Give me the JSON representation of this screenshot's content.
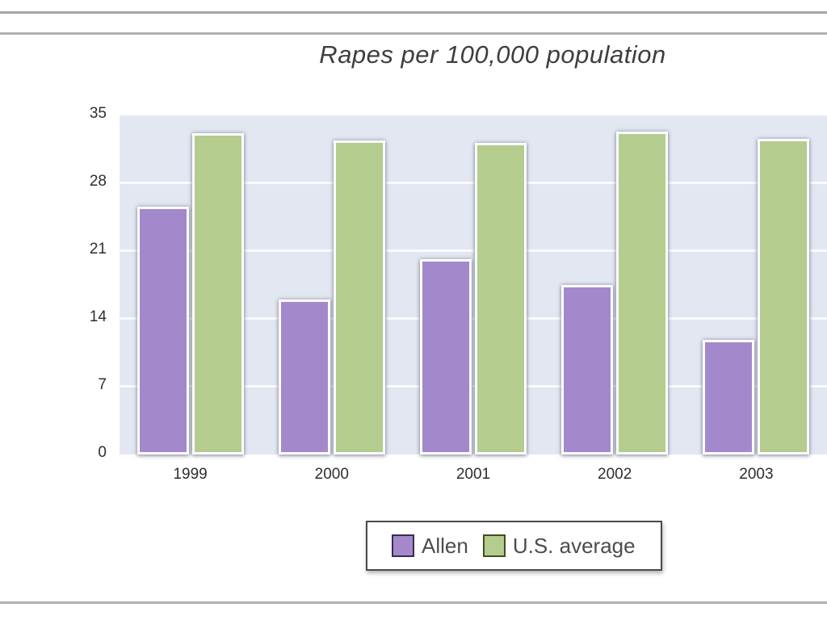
{
  "page": {
    "background": "#ffffff",
    "rule_color_top": "#a6a6a6",
    "rule_color_bottom": "#b0b0b0"
  },
  "chart_data": {
    "type": "bar",
    "title": "Rapes per 100,000 population",
    "title_color": "#3e3e3e",
    "categories": [
      "1999",
      "2000",
      "2001",
      "2002",
      "2003"
    ],
    "series": [
      {
        "name": "Allen",
        "color": "#a389cc",
        "bar_edge_color": "#fcfdfe",
        "legend_swatch_border": "#372c4f",
        "values": [
          25.6,
          16.0,
          20.2,
          17.5,
          11.8
        ]
      },
      {
        "name": "U.S. average",
        "color": "#b4cc8e",
        "bar_edge_color": "#fcfdfe",
        "legend_swatch_border": "#414d1c",
        "values": [
          33.2,
          32.4,
          32.2,
          33.3,
          32.6
        ]
      }
    ],
    "xlabel": "",
    "ylabel": "",
    "ylim": [
      0,
      35
    ],
    "yticks": [
      0,
      7,
      14,
      21,
      28,
      35
    ],
    "grid": true,
    "gridline_color": "#fafbfd",
    "plot_background": "#e3e7f1",
    "axis_text_color": "#2e2e2e",
    "legend_position": "bottom",
    "legend_border_color": "#4a4a4a",
    "legend_text_color": "#4c4c4c"
  }
}
